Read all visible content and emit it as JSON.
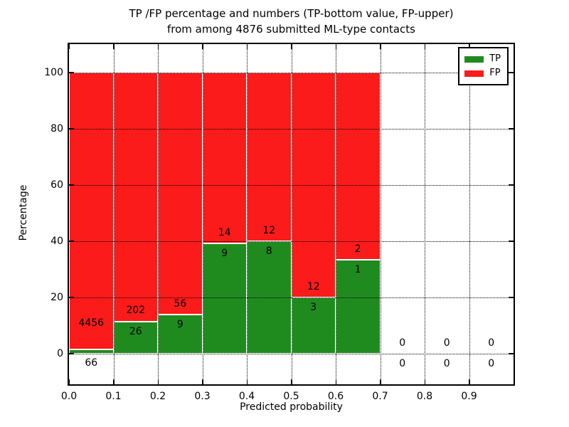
{
  "chart_data": {
    "type": "bar",
    "stacked": true,
    "title_line1": "TP /FP percentage and numbers (TP-bottom value, FP-upper)",
    "title_line2": "from among 4876 submitted ML-type contacts",
    "xlabel": "Predicted probability",
    "ylabel": "Percentage",
    "total_submitted": 4876,
    "xlim": [
      0.0,
      1.0
    ],
    "ylim": [
      -11,
      110
    ],
    "grid": true,
    "xticks": [
      {
        "v": 0.0,
        "label": "0.0"
      },
      {
        "v": 0.1,
        "label": "0.1"
      },
      {
        "v": 0.2,
        "label": "0.2"
      },
      {
        "v": 0.3,
        "label": "0.3"
      },
      {
        "v": 0.4,
        "label": "0.4"
      },
      {
        "v": 0.5,
        "label": "0.5"
      },
      {
        "v": 0.6,
        "label": "0.6"
      },
      {
        "v": 0.7,
        "label": "0.7"
      },
      {
        "v": 0.8,
        "label": "0.8"
      },
      {
        "v": 0.9,
        "label": "0.9"
      }
    ],
    "yticks": [
      {
        "v": 0,
        "label": "0"
      },
      {
        "v": 20,
        "label": "20"
      },
      {
        "v": 40,
        "label": "40"
      },
      {
        "v": 60,
        "label": "60"
      },
      {
        "v": 80,
        "label": "80"
      },
      {
        "v": 100,
        "label": "100"
      }
    ],
    "bins": [
      {
        "range": [
          0.0,
          0.1
        ],
        "tp": 66,
        "fp": 4456,
        "tp_pct": 1.46,
        "fp_pct": 98.54
      },
      {
        "range": [
          0.1,
          0.2
        ],
        "tp": 26,
        "fp": 202,
        "tp_pct": 11.4,
        "fp_pct": 88.6
      },
      {
        "range": [
          0.2,
          0.3
        ],
        "tp": 9,
        "fp": 56,
        "tp_pct": 13.85,
        "fp_pct": 86.15
      },
      {
        "range": [
          0.3,
          0.4
        ],
        "tp": 9,
        "fp": 14,
        "tp_pct": 39.13,
        "fp_pct": 60.87
      },
      {
        "range": [
          0.4,
          0.5
        ],
        "tp": 8,
        "fp": 12,
        "tp_pct": 40.0,
        "fp_pct": 60.0
      },
      {
        "range": [
          0.5,
          0.6
        ],
        "tp": 3,
        "fp": 12,
        "tp_pct": 20.0,
        "fp_pct": 80.0
      },
      {
        "range": [
          0.6,
          0.7
        ],
        "tp": 1,
        "fp": 2,
        "tp_pct": 33.33,
        "fp_pct": 66.67
      },
      {
        "range": [
          0.7,
          0.8
        ],
        "tp": 0,
        "fp": 0,
        "tp_pct": 0,
        "fp_pct": 0
      },
      {
        "range": [
          0.8,
          0.9
        ],
        "tp": 0,
        "fp": 0,
        "tp_pct": 0,
        "fp_pct": 0
      },
      {
        "range": [
          0.9,
          1.0
        ],
        "tp": 0,
        "fp": 0,
        "tp_pct": 0,
        "fp_pct": 0
      }
    ],
    "legend": {
      "position": "upper right",
      "entries": [
        {
          "label": "TP",
          "color": "#1f8b1f"
        },
        {
          "label": "FP",
          "color": "#fb1b1b"
        }
      ]
    },
    "colors": {
      "tp": "#1f8b1f",
      "fp": "#fb1b1b",
      "bar_edge": "#ffffff",
      "grid": "#000000",
      "text": "#000000",
      "background": "#ffffff"
    }
  }
}
